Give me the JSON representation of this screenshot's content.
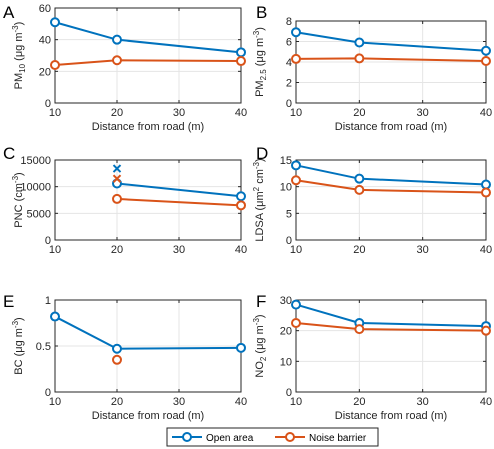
{
  "colors": {
    "open_area": "#0072BD",
    "noise_barrier": "#D95319",
    "grid": "#E5E5E5",
    "axis": "#262626"
  },
  "legend": {
    "entries": [
      "Open area",
      "Noise barrier"
    ],
    "placement": "bottom-center"
  },
  "chart_data": [
    {
      "panel": "A",
      "type": "line",
      "xlabel": "Distance from road (m)",
      "ylabel": {
        "base": "PM",
        "sub": "10",
        "suffix": " (",
        "mu": "μ",
        "unit": "g m",
        "sup": "-3",
        "close": ")"
      },
      "xlim": [
        10,
        40
      ],
      "ylim": [
        0,
        60
      ],
      "xticks": [
        10,
        20,
        30,
        40
      ],
      "yticks": [
        0,
        20,
        40,
        60
      ],
      "grid": true,
      "show_xlabel": true,
      "series": [
        {
          "name": "Open area",
          "x": [
            10,
            20,
            40
          ],
          "y": [
            51,
            40,
            32
          ],
          "marker": "o"
        },
        {
          "name": "Noise barrier",
          "x": [
            10,
            20,
            40
          ],
          "y": [
            24,
            27,
            26.5
          ],
          "marker": "o"
        }
      ]
    },
    {
      "panel": "B",
      "type": "line",
      "xlabel": "Distance from road (m)",
      "ylabel": {
        "base": "PM",
        "sub": "2.5",
        "suffix": " (",
        "mu": "μ",
        "unit": "g m",
        "sup": "-3",
        "close": ")"
      },
      "xlim": [
        10,
        40
      ],
      "ylim": [
        0,
        8
      ],
      "xticks": [
        10,
        20,
        30,
        40
      ],
      "yticks": [
        0,
        2,
        4,
        6,
        8
      ],
      "grid": true,
      "show_xlabel": true,
      "series": [
        {
          "name": "Open area",
          "x": [
            10,
            20,
            40
          ],
          "y": [
            6.9,
            5.9,
            5.1
          ],
          "marker": "o"
        },
        {
          "name": "Noise barrier",
          "x": [
            10,
            20,
            40
          ],
          "y": [
            4.3,
            4.35,
            4.1
          ],
          "marker": "o"
        }
      ]
    },
    {
      "panel": "C",
      "type": "line",
      "xlabel": "",
      "ylabel": {
        "base": "PNC (cm",
        "sup": "-3",
        "close": ")"
      },
      "xlim": [
        10,
        40
      ],
      "ylim": [
        0,
        15000
      ],
      "xticks": [
        10,
        20,
        30,
        40
      ],
      "yticks": [
        0,
        5000,
        10000,
        15000
      ],
      "grid": true,
      "show_xlabel": false,
      "series": [
        {
          "name": "Open area",
          "x": [
            20,
            40
          ],
          "y": [
            10600,
            8200
          ],
          "marker": "o",
          "extra_x": [
            20
          ],
          "extra_y": [
            13400
          ]
        },
        {
          "name": "Noise barrier",
          "x": [
            20,
            40
          ],
          "y": [
            7700,
            6500
          ],
          "marker": "o",
          "extra_x": [
            20
          ],
          "extra_y": [
            11500
          ]
        }
      ]
    },
    {
      "panel": "D",
      "type": "line",
      "xlabel": "",
      "ylabel": {
        "base": "LDSA (",
        "mu": "μ",
        "unit": "m",
        "sup": "2",
        "unit2": " cm",
        "sup2": "-3",
        "close": ")"
      },
      "xlim": [
        10,
        40
      ],
      "ylim": [
        0,
        15
      ],
      "xticks": [
        10,
        20,
        30,
        40
      ],
      "yticks": [
        0,
        5,
        10,
        15
      ],
      "grid": true,
      "show_xlabel": false,
      "series": [
        {
          "name": "Open area",
          "x": [
            10,
            20,
            40
          ],
          "y": [
            14,
            11.5,
            10.4
          ],
          "marker": "o"
        },
        {
          "name": "Noise barrier",
          "x": [
            10,
            20,
            40
          ],
          "y": [
            11.2,
            9.4,
            8.9
          ],
          "marker": "o"
        }
      ]
    },
    {
      "panel": "E",
      "type": "line",
      "xlabel": "Distance from road (m)",
      "ylabel": {
        "base": "BC (",
        "mu": "μ",
        "unit": "g m",
        "sup": "-3",
        "close": ")"
      },
      "xlim": [
        10,
        40
      ],
      "ylim": [
        0,
        1
      ],
      "xticks": [
        10,
        20,
        30,
        40
      ],
      "yticks": [
        0,
        0.5,
        1
      ],
      "grid": true,
      "show_xlabel": true,
      "series": [
        {
          "name": "Open area",
          "x": [
            10,
            20,
            40
          ],
          "y": [
            0.82,
            0.47,
            0.48
          ],
          "marker": "o"
        },
        {
          "name": "Noise barrier",
          "x": [
            20
          ],
          "y": [
            0.35
          ],
          "marker": "o"
        }
      ]
    },
    {
      "panel": "F",
      "type": "line",
      "xlabel": "Distance from road (m)",
      "ylabel": {
        "base": "NO",
        "sub": "2",
        "suffix": " (",
        "mu": "μ",
        "unit": "g m",
        "sup": "-3",
        "close": ")"
      },
      "xlim": [
        10,
        40
      ],
      "ylim": [
        0,
        30
      ],
      "xticks": [
        10,
        20,
        30,
        40
      ],
      "yticks": [
        0,
        10,
        20,
        30
      ],
      "grid": true,
      "show_xlabel": true,
      "series": [
        {
          "name": "Open area",
          "x": [
            10,
            20,
            40
          ],
          "y": [
            28.5,
            22.5,
            21.5
          ],
          "marker": "o"
        },
        {
          "name": "Noise barrier",
          "x": [
            10,
            20,
            40
          ],
          "y": [
            22.5,
            20.5,
            20
          ],
          "marker": "o"
        }
      ]
    }
  ]
}
